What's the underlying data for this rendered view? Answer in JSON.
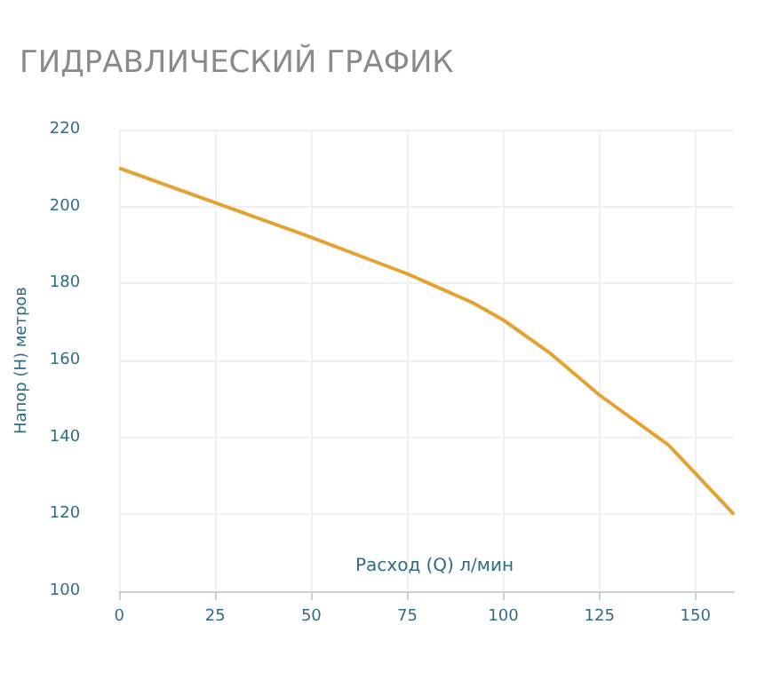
{
  "chart_data": {
    "type": "line",
    "title": "ГИДРАВЛИЧЕСКИЙ ГРАФИК",
    "xlabel": "Расход (Q) л/мин",
    "ylabel": "Напор (H) метров",
    "x": [
      0,
      25,
      50,
      75,
      92,
      100,
      112,
      125,
      143,
      160
    ],
    "series": [
      {
        "color": "#e5a233",
        "values": [
          210,
          201,
          192,
          182.5,
          175,
          170.5,
          162,
          151,
          138,
          120
        ]
      }
    ],
    "xlim": [
      0,
      160
    ],
    "xticks": [
      0,
      25,
      50,
      75,
      100,
      125,
      150
    ],
    "ylim": [
      100,
      220
    ],
    "yticks": [
      100,
      120,
      140,
      160,
      180,
      200,
      220
    ],
    "grid": true,
    "marker": "none",
    "line_style": "solid"
  }
}
